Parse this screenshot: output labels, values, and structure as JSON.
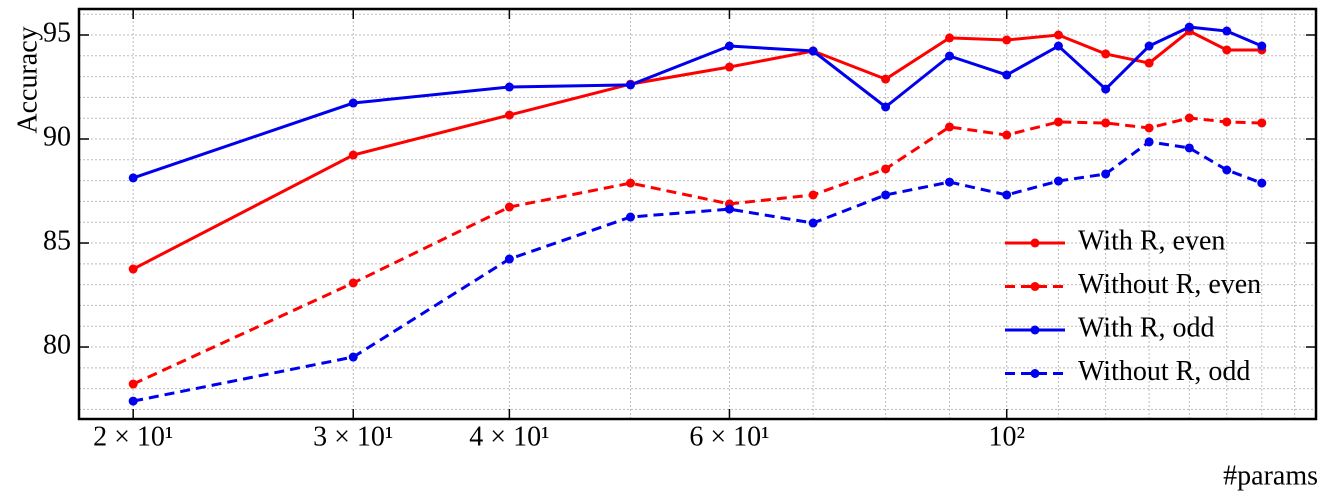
{
  "chart_data": {
    "type": "line",
    "xlabel": "#params",
    "ylabel": "Accuracy",
    "x": [
      20,
      30,
      40,
      50,
      60,
      70,
      80,
      90,
      100,
      110,
      120,
      130,
      140,
      150,
      160
    ],
    "series": [
      {
        "name": "With R, even",
        "color": "#ff0000",
        "dash": false,
        "values": [
          83.75,
          89.23,
          91.15,
          92.64,
          93.46,
          94.23,
          92.88,
          94.86,
          94.76,
          95.0,
          94.09,
          93.65,
          95.19,
          94.28,
          94.28
        ]
      },
      {
        "name": "Without R, even",
        "color": "#ff0000",
        "dash": true,
        "values": [
          78.22,
          83.08,
          86.73,
          87.88,
          86.88,
          87.31,
          88.56,
          90.58,
          90.19,
          90.82,
          90.77,
          90.53,
          91.01,
          90.82,
          90.77
        ]
      },
      {
        "name": "With R, odd",
        "color": "#0000ee",
        "dash": false,
        "values": [
          88.13,
          91.73,
          92.5,
          92.6,
          94.47,
          94.23,
          91.54,
          93.99,
          93.08,
          94.47,
          92.4,
          94.47,
          95.38,
          95.19,
          94.47
        ]
      },
      {
        "name": "Without R, odd",
        "color": "#0000ee",
        "dash": true,
        "values": [
          77.4,
          79.52,
          84.23,
          86.25,
          86.63,
          85.96,
          87.31,
          87.93,
          87.31,
          87.98,
          88.32,
          89.86,
          89.57,
          88.51,
          87.88
        ]
      }
    ],
    "xscale": "log",
    "xlim": [
      18.1,
      176.8
    ],
    "xticks": [
      {
        "value": 20,
        "label": "2 × 10¹"
      },
      {
        "value": 30,
        "label": "3 × 10¹"
      },
      {
        "value": 40,
        "label": "4 × 10¹"
      },
      {
        "value": 60,
        "label": "6 × 10¹"
      },
      {
        "value": 100,
        "label": "10²"
      }
    ],
    "xminorticks": [
      50,
      70,
      80,
      90,
      110,
      120,
      130,
      140,
      150,
      160,
      170
    ],
    "ylim": [
      76.54,
      96.25
    ],
    "yticks": [
      80,
      85,
      90,
      95
    ],
    "yminorticks": [
      77,
      78,
      79,
      81,
      82,
      83,
      84,
      86,
      87,
      88,
      89,
      91,
      92,
      93,
      94,
      96
    ],
    "grid": true,
    "legend": "lower right"
  }
}
